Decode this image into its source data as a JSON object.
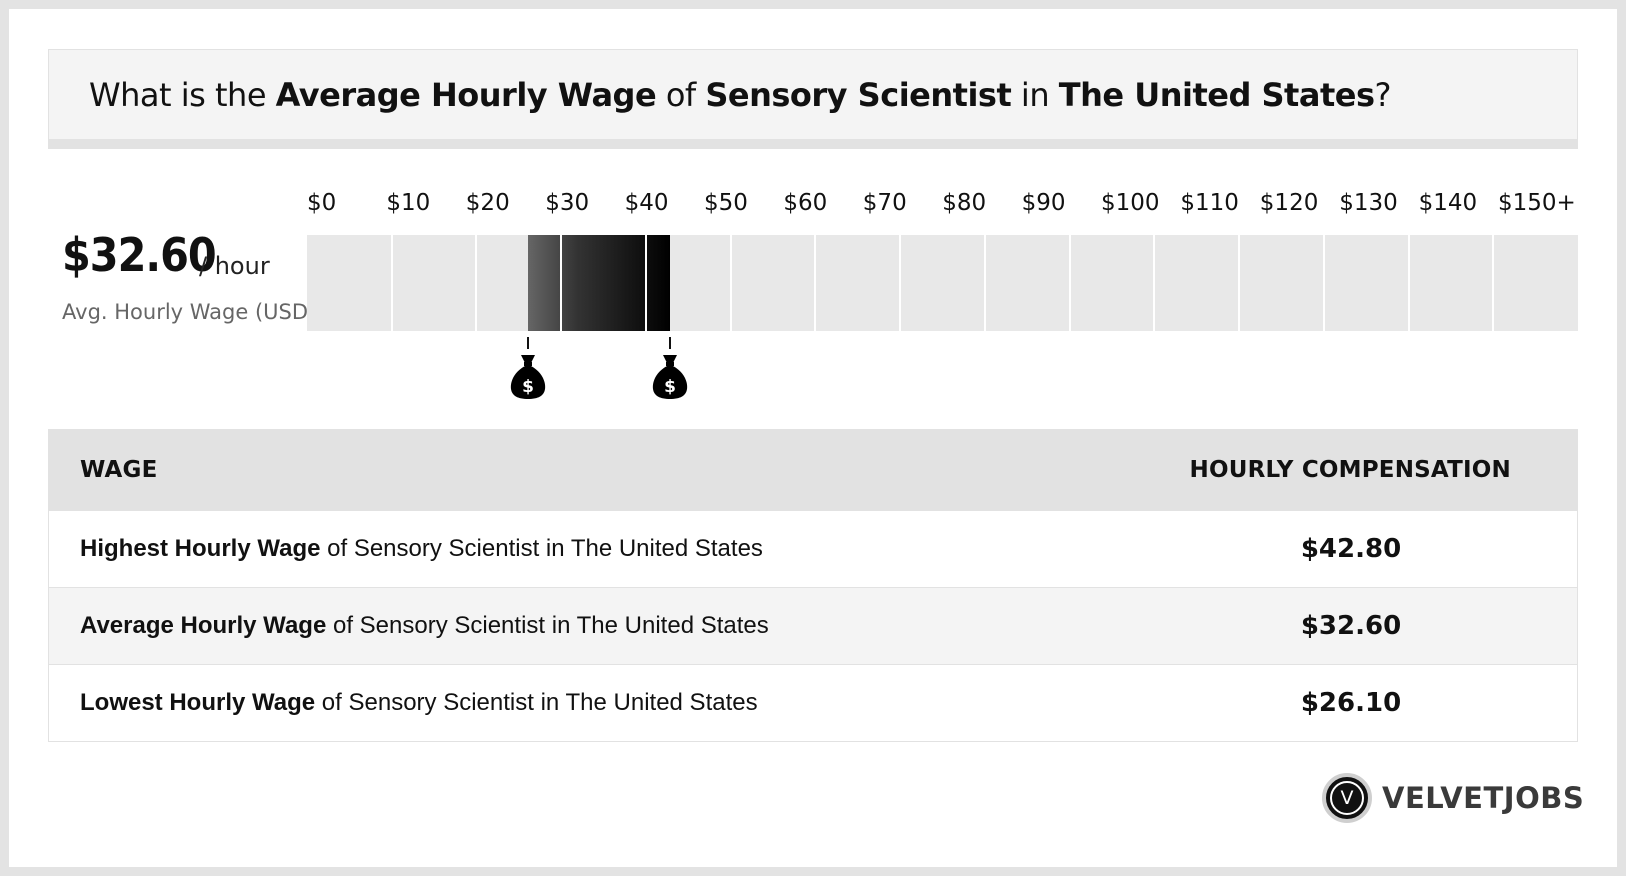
{
  "headline": {
    "p1": "What is the ",
    "b1": "Average Hourly Wage",
    "p2": " of ",
    "b2": "Sensory Scientist",
    "p3": " in ",
    "b3": "The United States",
    "p4": "?"
  },
  "summary": {
    "value": "$32.60",
    "unit": "/ hour",
    "caption": "Avg. Hourly Wage (USD)"
  },
  "chart_data": {
    "type": "bar",
    "orientation": "horizontal-range",
    "tick_labels": [
      "$0",
      "$10",
      "$20",
      "$30",
      "$40",
      "$50",
      "$60",
      "$70",
      "$80",
      "$90",
      "$100",
      "$110",
      "$120",
      "$130",
      "$140",
      "$150+"
    ],
    "xlim": [
      0,
      150
    ],
    "segments": 15,
    "range": {
      "low": 26.1,
      "average": 32.6,
      "high": 42.8
    },
    "markers": [
      26.1,
      42.8
    ],
    "marker_icon": "money-bag-icon",
    "colors": {
      "track": "#e8e8e8",
      "range_start": "#666666",
      "range_end": "#000000",
      "separator": "#ffffff"
    }
  },
  "table": {
    "headers": {
      "wage": "WAGE",
      "comp": "HOURLY COMPENSATION"
    },
    "rows": [
      {
        "bold": "Highest Hourly Wage",
        "rest": " of Sensory Scientist in The United States",
        "value": "$42.80"
      },
      {
        "bold": "Average Hourly Wage",
        "rest": " of Sensory Scientist in The United States",
        "value": "$32.60"
      },
      {
        "bold": "Lowest Hourly Wage",
        "rest": " of Sensory Scientist in The United States",
        "value": "$26.10"
      }
    ]
  },
  "logo": {
    "letter": "V",
    "text": "VELVETJOBS"
  }
}
